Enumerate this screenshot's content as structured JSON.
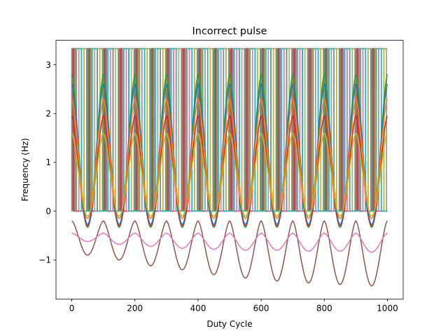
{
  "chart_data": {
    "type": "line",
    "title": "Incorrect pulse",
    "xlabel": "Duty Cycle",
    "ylabel": "Frequency (Hz)",
    "xlim": [
      -50,
      1050
    ],
    "ylim": [
      -1.8,
      3.5
    ],
    "xticks": [
      0,
      200,
      400,
      600,
      800,
      1000
    ],
    "xtick_labels": [
      "0",
      "200",
      "400",
      "600",
      "800",
      "1000"
    ],
    "yticks": [
      -1,
      0,
      1,
      2,
      3
    ],
    "ytick_labels": [
      "−1",
      "0",
      "1",
      "2",
      "3"
    ],
    "pulse_high": 3.33,
    "pulse_low": 0,
    "pulse_period": 50,
    "grid": false,
    "legend": "none",
    "palette": [
      "#1f77b4",
      "#ff7f0e",
      "#2ca02c",
      "#d62728",
      "#9467bd",
      "#8c564b",
      "#e377c2",
      "#7f7f7f",
      "#bcbd22",
      "#17becf"
    ],
    "series": [
      {
        "color": "#8c564b",
        "trough_min": [
          -0.9,
          -1.0,
          -1.12,
          -1.2,
          -1.3,
          -1.37,
          -1.43,
          -1.47,
          -1.5,
          -1.53
        ],
        "trough_max": [
          -0.2,
          -0.2,
          -0.2,
          -0.2,
          -0.2,
          -0.2,
          -0.2,
          -0.2,
          -0.2,
          -0.2
        ]
      },
      {
        "color": "#e377c2",
        "trough_min": [
          -0.62,
          -0.68,
          -0.72,
          -0.76,
          -0.78,
          -0.8,
          -0.8,
          -0.82,
          -0.82,
          -0.84
        ],
        "trough_max": [
          -0.45,
          -0.45,
          -0.45,
          -0.45,
          -0.45,
          -0.45,
          -0.45,
          -0.45,
          -0.45,
          -0.45
        ]
      },
      {
        "color": "#2ca02c",
        "trough_min": [
          -0.33,
          -0.33,
          -0.33,
          -0.33,
          -0.33,
          -0.33,
          -0.33,
          -0.33,
          -0.33,
          -0.33
        ],
        "trough_max": [
          2.8,
          2.8,
          2.8,
          2.8,
          2.8,
          2.8,
          2.8,
          2.8,
          2.8,
          2.8
        ]
      },
      {
        "color": "#d62728",
        "trough_min": [
          -0.3,
          -0.3,
          -0.3,
          -0.3,
          -0.3,
          -0.3,
          -0.3,
          -0.3,
          -0.3,
          -0.3
        ],
        "trough_max": [
          1.95,
          1.95,
          1.95,
          1.95,
          1.95,
          1.95,
          1.95,
          1.95,
          1.95,
          1.95
        ]
      },
      {
        "color": "#1f77b4",
        "trough_min": [
          -0.27,
          -0.27,
          -0.27,
          -0.27,
          -0.27,
          -0.27,
          -0.27,
          -0.27,
          -0.27,
          -0.27
        ],
        "trough_max": [
          2.6,
          2.6,
          2.6,
          2.6,
          2.6,
          2.6,
          2.6,
          2.6,
          2.6,
          2.6
        ]
      },
      {
        "color": "#ff7f0e",
        "trough_min": [
          -0.15,
          -0.15,
          -0.15,
          -0.15,
          -0.15,
          -0.15,
          -0.15,
          -0.15,
          -0.15,
          -0.15
        ],
        "trough_max": [
          2.3,
          2.3,
          2.3,
          2.3,
          2.3,
          2.3,
          2.3,
          2.3,
          2.3,
          2.3
        ]
      },
      {
        "color": "#bcbd22",
        "trough_min": [
          -0.1,
          -0.1,
          -0.1,
          -0.1,
          -0.1,
          -0.1,
          -0.1,
          -0.1,
          -0.1,
          -0.1
        ],
        "trough_max": [
          1.6,
          1.6,
          1.6,
          1.6,
          1.6,
          1.6,
          1.6,
          1.6,
          1.6,
          1.6
        ]
      }
    ]
  }
}
